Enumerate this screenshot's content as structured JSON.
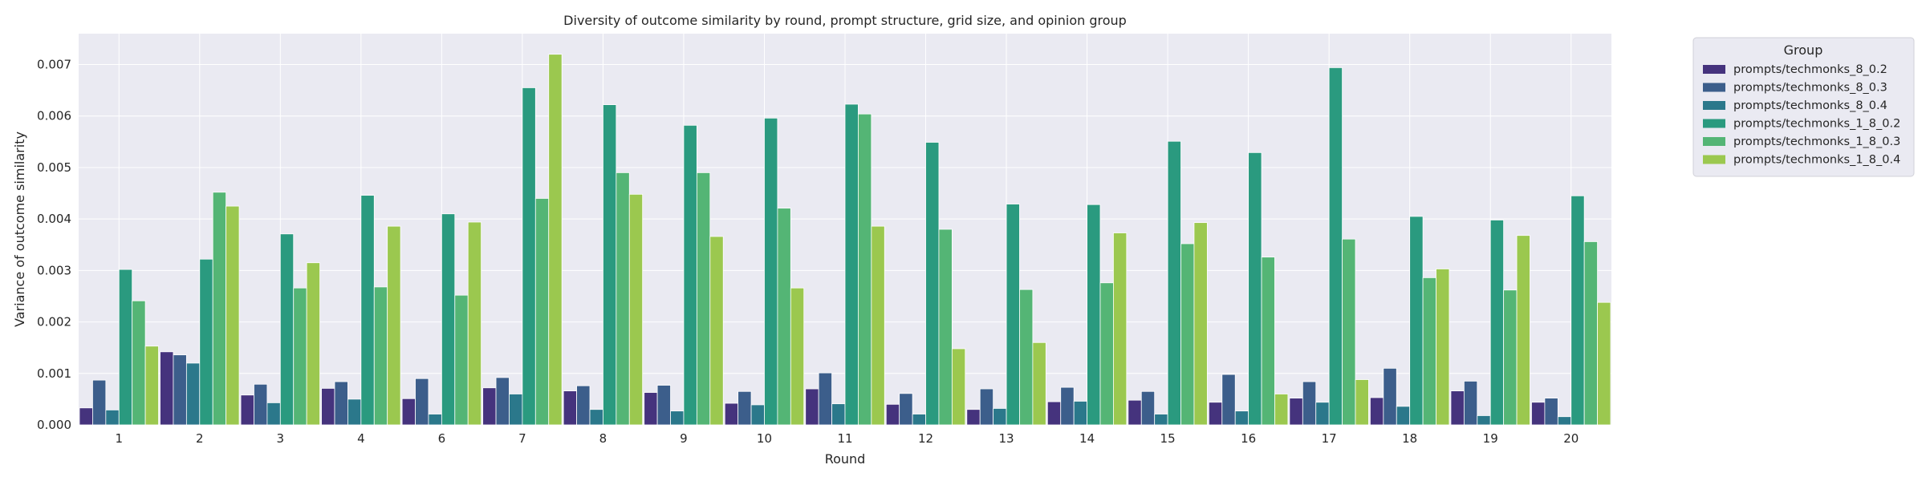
{
  "chart_data": {
    "type": "bar",
    "title": "Diversity of outcome similarity by round, prompt structure, grid size, and opinion group",
    "xlabel": "Round",
    "ylabel": "Variance of outcome similarity",
    "ylim": [
      0,
      0.0076
    ],
    "yticks": [
      "0.000",
      "0.001",
      "0.002",
      "0.003",
      "0.004",
      "0.005",
      "0.006",
      "0.007"
    ],
    "grid": true,
    "legend_title": "Group",
    "legend_position": "outside-right",
    "categories": [
      "1",
      "2",
      "3",
      "4",
      "6",
      "7",
      "8",
      "9",
      "10",
      "11",
      "12",
      "13",
      "14",
      "15",
      "16",
      "17",
      "18",
      "19",
      "20"
    ],
    "series": [
      {
        "name": "prompts/techmonks_8_0.2",
        "color": "#45337d",
        "values": [
          0.00033,
          0.00142,
          0.00058,
          0.00071,
          0.00051,
          0.00072,
          0.00066,
          0.00063,
          0.00042,
          0.0007,
          0.0004,
          0.0003,
          0.00045,
          0.00048,
          0.00044,
          0.00052,
          0.00053,
          0.00066,
          0.00044
        ]
      },
      {
        "name": "prompts/techmonks_8_0.3",
        "color": "#3c5e8b",
        "values": [
          0.00087,
          0.00136,
          0.00079,
          0.00084,
          0.0009,
          0.00092,
          0.00076,
          0.00077,
          0.00065,
          0.00101,
          0.00061,
          0.0007,
          0.00073,
          0.00065,
          0.00098,
          0.00084,
          0.0011,
          0.00085,
          0.00052
        ]
      },
      {
        "name": "prompts/techmonks_8_0.4",
        "color": "#2b788b",
        "values": [
          0.00029,
          0.0012,
          0.00043,
          0.0005,
          0.00021,
          0.0006,
          0.0003,
          0.00027,
          0.00039,
          0.00041,
          0.00021,
          0.00032,
          0.00046,
          0.00021,
          0.00027,
          0.00044,
          0.00036,
          0.00018,
          0.00016
        ]
      },
      {
        "name": "prompts/techmonks_1_8_0.2",
        "color": "#2a9a7f",
        "values": [
          0.00302,
          0.00322,
          0.00371,
          0.00446,
          0.0041,
          0.00655,
          0.00622,
          0.00582,
          0.00596,
          0.00623,
          0.00549,
          0.00429,
          0.00428,
          0.00551,
          0.00529,
          0.00694,
          0.00405,
          0.00398,
          0.00445
        ]
      },
      {
        "name": "prompts/techmonks_1_8_0.3",
        "color": "#54b575",
        "values": [
          0.00241,
          0.00452,
          0.00266,
          0.00268,
          0.00252,
          0.0044,
          0.0049,
          0.0049,
          0.00421,
          0.00604,
          0.0038,
          0.00263,
          0.00276,
          0.00352,
          0.00326,
          0.00361,
          0.00286,
          0.00262,
          0.00356
        ]
      },
      {
        "name": "prompts/techmonks_1_8_0.4",
        "color": "#9bc84f",
        "values": [
          0.00153,
          0.00425,
          0.00315,
          0.00386,
          0.00394,
          0.0072,
          0.00448,
          0.00366,
          0.00266,
          0.00386,
          0.00148,
          0.0016,
          0.00373,
          0.00393,
          0.0006,
          0.00088,
          0.00303,
          0.00368,
          0.00238
        ]
      }
    ]
  }
}
